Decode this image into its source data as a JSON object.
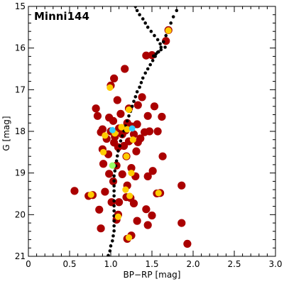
{
  "chart_data": {
    "type": "scatter",
    "title": "Minni144",
    "xlabel": "BP−RP [mag]",
    "ylabel": "G [mag]",
    "xlim": [
      0,
      3.0
    ],
    "ylim": [
      21,
      15
    ],
    "y_inverted": true,
    "grid": false,
    "xticks": [
      "0",
      "0.5",
      "1.0",
      "1.5",
      "2.0",
      "2.5",
      "3.0"
    ],
    "yticks": [
      "15",
      "16",
      "17",
      "18",
      "19",
      "20",
      "21"
    ],
    "colors": {
      "field": "#aa0000",
      "members": "#ffcc00",
      "high_prob": "#99ff66",
      "top_prob": "#33ccff",
      "isochrone": "#000000"
    },
    "series": [
      {
        "role": "field",
        "points": [
          [
            1.7,
            15.57
          ],
          [
            1.67,
            15.83
          ],
          [
            1.5,
            16.17
          ],
          [
            1.43,
            16.18
          ],
          [
            1.17,
            16.5
          ],
          [
            1.04,
            16.73
          ],
          [
            1.0,
            16.9
          ],
          [
            1.38,
            17.18
          ],
          [
            1.08,
            17.25
          ],
          [
            1.33,
            17.37
          ],
          [
            1.22,
            17.45
          ],
          [
            0.82,
            17.45
          ],
          [
            1.53,
            17.4
          ],
          [
            1.12,
            17.58
          ],
          [
            0.98,
            17.67
          ],
          [
            0.84,
            17.63
          ],
          [
            1.45,
            17.63
          ],
          [
            1.62,
            17.65
          ],
          [
            1.03,
            17.75
          ],
          [
            1.2,
            17.8
          ],
          [
            1.32,
            17.83
          ],
          [
            1.25,
            17.88
          ],
          [
            1.1,
            17.93
          ],
          [
            1.18,
            17.98
          ],
          [
            0.9,
            17.95
          ],
          [
            0.88,
            18.02
          ],
          [
            1.0,
            18.0
          ],
          [
            1.41,
            18.02
          ],
          [
            1.47,
            18.0
          ],
          [
            1.57,
            18.0
          ],
          [
            1.05,
            18.13
          ],
          [
            1.14,
            18.07
          ],
          [
            1.28,
            18.07
          ],
          [
            0.95,
            18.18
          ],
          [
            1.36,
            18.17
          ],
          [
            1.04,
            18.27
          ],
          [
            1.22,
            18.24
          ],
          [
            1.33,
            18.26
          ],
          [
            0.9,
            18.43
          ],
          [
            1.09,
            18.38
          ],
          [
            1.16,
            18.35
          ],
          [
            1.31,
            18.48
          ],
          [
            0.97,
            18.55
          ],
          [
            1.19,
            18.6
          ],
          [
            1.63,
            18.6
          ],
          [
            0.91,
            18.78
          ],
          [
            1.07,
            18.82
          ],
          [
            1.25,
            18.88
          ],
          [
            1.51,
            18.95
          ],
          [
            0.98,
            19.02
          ],
          [
            1.14,
            19.03
          ],
          [
            1.45,
            19.08
          ],
          [
            1.3,
            19.08
          ],
          [
            1.03,
            19.2
          ],
          [
            1.2,
            19.3
          ],
          [
            1.86,
            19.3
          ],
          [
            0.56,
            19.43
          ],
          [
            0.73,
            19.55
          ],
          [
            0.78,
            19.53
          ],
          [
            0.93,
            19.45
          ],
          [
            1.6,
            19.48
          ],
          [
            1.56,
            19.49
          ],
          [
            1.19,
            19.58
          ],
          [
            1.24,
            19.6
          ],
          [
            1.1,
            19.7
          ],
          [
            1.01,
            19.7
          ],
          [
            1.28,
            19.73
          ],
          [
            0.86,
            19.88
          ],
          [
            1.43,
            19.87
          ],
          [
            1.09,
            20.0
          ],
          [
            1.5,
            20.02
          ],
          [
            1.32,
            20.15
          ],
          [
            1.86,
            20.2
          ],
          [
            1.45,
            20.25
          ],
          [
            0.88,
            20.33
          ],
          [
            1.25,
            20.5
          ],
          [
            1.2,
            20.58
          ],
          [
            1.93,
            20.7
          ],
          [
            1.07,
            20.12
          ]
        ]
      },
      {
        "role": "members",
        "points": [
          [
            1.7,
            15.58
          ],
          [
            0.99,
            16.95
          ],
          [
            1.22,
            17.48
          ],
          [
            1.13,
            17.9
          ],
          [
            1.2,
            17.95
          ],
          [
            1.05,
            18.05
          ],
          [
            1.27,
            18.2
          ],
          [
            0.91,
            18.5
          ],
          [
            1.19,
            18.6
          ],
          [
            1.25,
            19.0
          ],
          [
            1.18,
            19.4
          ],
          [
            1.23,
            19.55
          ],
          [
            1.58,
            19.48
          ],
          [
            0.76,
            19.52
          ],
          [
            1.22,
            20.55
          ],
          [
            1.09,
            20.05
          ],
          [
            0.93,
            18.1
          ]
        ]
      },
      {
        "role": "high_prob",
        "points": [
          [
            1.02,
            18.82
          ]
        ]
      },
      {
        "role": "top_prob",
        "points": [
          [
            1.02,
            17.97
          ],
          [
            1.26,
            17.93
          ]
        ]
      }
    ],
    "isochrone": [
      [
        1.8,
        15.1
      ],
      [
        1.76,
        15.25
      ],
      [
        1.73,
        15.4
      ],
      [
        1.7,
        15.55
      ],
      [
        1.67,
        15.7
      ],
      [
        1.64,
        15.85
      ],
      [
        1.61,
        15.98
      ],
      [
        1.57,
        16.1
      ],
      [
        1.54,
        16.2
      ],
      [
        1.51,
        16.3
      ],
      [
        1.48,
        16.4
      ],
      [
        1.45,
        16.5
      ],
      [
        1.42,
        16.6
      ],
      [
        1.39,
        16.72
      ],
      [
        1.37,
        16.83
      ],
      [
        1.35,
        16.94
      ],
      [
        1.32,
        17.05
      ],
      [
        1.3,
        17.17
      ],
      [
        1.28,
        17.28
      ],
      [
        1.26,
        17.4
      ],
      [
        1.24,
        17.52
      ],
      [
        1.22,
        17.63
      ],
      [
        1.2,
        17.75
      ],
      [
        1.18,
        17.87
      ],
      [
        1.16,
        17.99
      ],
      [
        1.14,
        18.11
      ],
      [
        1.12,
        18.23
      ],
      [
        1.11,
        18.35
      ],
      [
        1.09,
        18.47
      ],
      [
        1.08,
        18.59
      ],
      [
        1.07,
        18.71
      ],
      [
        1.06,
        18.83
      ],
      [
        1.05,
        18.95
      ],
      [
        1.04,
        19.07
      ],
      [
        1.04,
        19.19
      ],
      [
        1.04,
        19.31
      ],
      [
        1.04,
        19.43
      ],
      [
        1.04,
        19.55
      ],
      [
        1.04,
        19.67
      ],
      [
        1.04,
        19.79
      ],
      [
        1.04,
        19.91
      ],
      [
        1.04,
        20.03
      ],
      [
        1.04,
        20.15
      ],
      [
        1.04,
        20.27
      ],
      [
        1.04,
        20.39
      ],
      [
        1.03,
        20.51
      ],
      [
        1.02,
        20.63
      ],
      [
        1.0,
        20.75
      ],
      [
        0.99,
        20.87
      ],
      [
        0.97,
        20.98
      ],
      [
        1.3,
        15.0
      ],
      [
        1.32,
        15.1
      ],
      [
        1.35,
        15.2
      ],
      [
        1.39,
        15.3
      ],
      [
        1.42,
        15.4
      ],
      [
        1.45,
        15.5
      ],
      [
        1.49,
        15.6
      ],
      [
        1.53,
        15.7
      ],
      [
        1.57,
        15.8
      ],
      [
        1.6,
        15.9
      ],
      [
        1.66,
        15.98
      ],
      [
        1.61,
        16.04
      ],
      [
        1.58,
        16.09
      ],
      [
        1.55,
        16.14
      ],
      [
        1.52,
        16.19
      ]
    ]
  }
}
